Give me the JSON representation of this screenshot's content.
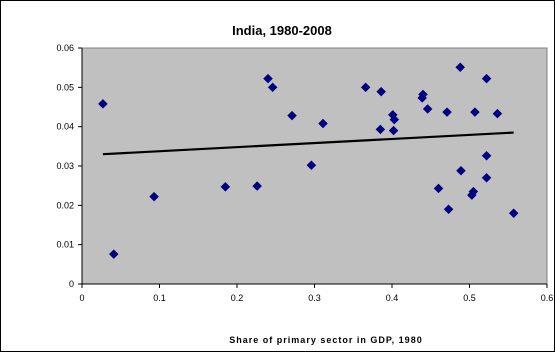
{
  "chart_data": {
    "type": "scatter",
    "title": "India, 1980-2008",
    "xlabel": "Share of primary sector in GDP, 1980",
    "ylabel": "",
    "xlim": [
      0,
      0.6
    ],
    "ylim": [
      0,
      0.06
    ],
    "x_ticks": [
      "0",
      "0.1",
      "0.2",
      "0.3",
      "0.4",
      "0.5",
      "0.6"
    ],
    "y_ticks": [
      "0",
      "0.01",
      "0.02",
      "0.03",
      "0.04",
      "0.05",
      "0.06"
    ],
    "grid": false,
    "legend": "none",
    "colors": {
      "plot_background": "#c0c0c0",
      "marker": "#000080",
      "trendline": "#000000"
    },
    "series": [
      {
        "marker": "diamond",
        "points": [
          {
            "x": 0.027,
            "y": 0.0458
          },
          {
            "x": 0.041,
            "y": 0.0076
          },
          {
            "x": 0.093,
            "y": 0.0222
          },
          {
            "x": 0.185,
            "y": 0.0247
          },
          {
            "x": 0.226,
            "y": 0.0249
          },
          {
            "x": 0.24,
            "y": 0.0522
          },
          {
            "x": 0.246,
            "y": 0.05
          },
          {
            "x": 0.271,
            "y": 0.0428
          },
          {
            "x": 0.296,
            "y": 0.0302
          },
          {
            "x": 0.311,
            "y": 0.0408
          },
          {
            "x": 0.366,
            "y": 0.05
          },
          {
            "x": 0.385,
            "y": 0.0393
          },
          {
            "x": 0.386,
            "y": 0.0489
          },
          {
            "x": 0.401,
            "y": 0.043
          },
          {
            "x": 0.402,
            "y": 0.039
          },
          {
            "x": 0.403,
            "y": 0.0418
          },
          {
            "x": 0.439,
            "y": 0.0473
          },
          {
            "x": 0.44,
            "y": 0.0482
          },
          {
            "x": 0.446,
            "y": 0.0445
          },
          {
            "x": 0.46,
            "y": 0.0243
          },
          {
            "x": 0.471,
            "y": 0.0437
          },
          {
            "x": 0.473,
            "y": 0.019
          },
          {
            "x": 0.488,
            "y": 0.0551
          },
          {
            "x": 0.489,
            "y": 0.0288
          },
          {
            "x": 0.503,
            "y": 0.0226
          },
          {
            "x": 0.505,
            "y": 0.0235
          },
          {
            "x": 0.507,
            "y": 0.0437
          },
          {
            "x": 0.522,
            "y": 0.0522
          },
          {
            "x": 0.522,
            "y": 0.0326
          },
          {
            "x": 0.522,
            "y": 0.027
          },
          {
            "x": 0.536,
            "y": 0.0433
          },
          {
            "x": 0.557,
            "y": 0.018
          }
        ]
      }
    ],
    "trendline": {
      "type": "linear",
      "x": [
        0.027,
        0.557
      ],
      "y": [
        0.033,
        0.0385
      ]
    }
  }
}
